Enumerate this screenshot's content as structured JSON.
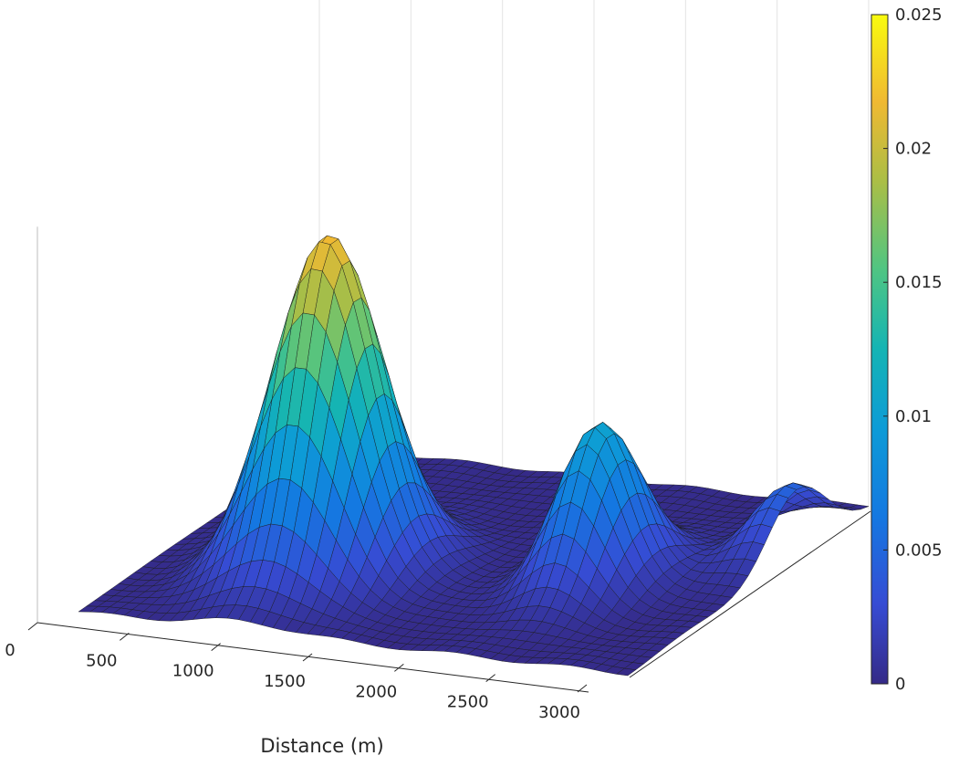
{
  "chart_data": {
    "type": "surface",
    "title": "",
    "xlabel": "Distance (m)",
    "ylabel": "",
    "zlabel": "",
    "x_ticks": [
      0,
      500,
      1000,
      1500,
      2000,
      2500,
      3000
    ],
    "x_tick_labels": [
      "0",
      "500",
      "1000",
      "1500",
      "2000",
      "2500",
      "3000"
    ],
    "xlim": [
      0,
      3000
    ],
    "zlim": [
      0,
      0.025
    ],
    "grid": true,
    "colormap": "parula",
    "colorbar": {
      "position": "right",
      "range": [
        0,
        0.025
      ],
      "ticks": [
        0,
        0.005,
        0.01,
        0.015,
        0.02,
        0.025
      ],
      "tick_labels": [
        "0",
        "0.005",
        "0.01",
        "0.015",
        "0.02",
        "0.025"
      ]
    },
    "peaks": [
      {
        "x": 900,
        "depth_fraction": 0.35,
        "height": 0.022,
        "sigma_x": 260,
        "sigma_depth": 0.13
      },
      {
        "x": 2250,
        "depth_fraction": 0.45,
        "height": 0.0105,
        "sigma_x": 180,
        "sigma_depth": 0.12
      },
      {
        "x": 2950,
        "depth_fraction": 0.7,
        "height": 0.0045,
        "sigma_x": 170,
        "sigma_depth": 0.12
      }
    ]
  }
}
